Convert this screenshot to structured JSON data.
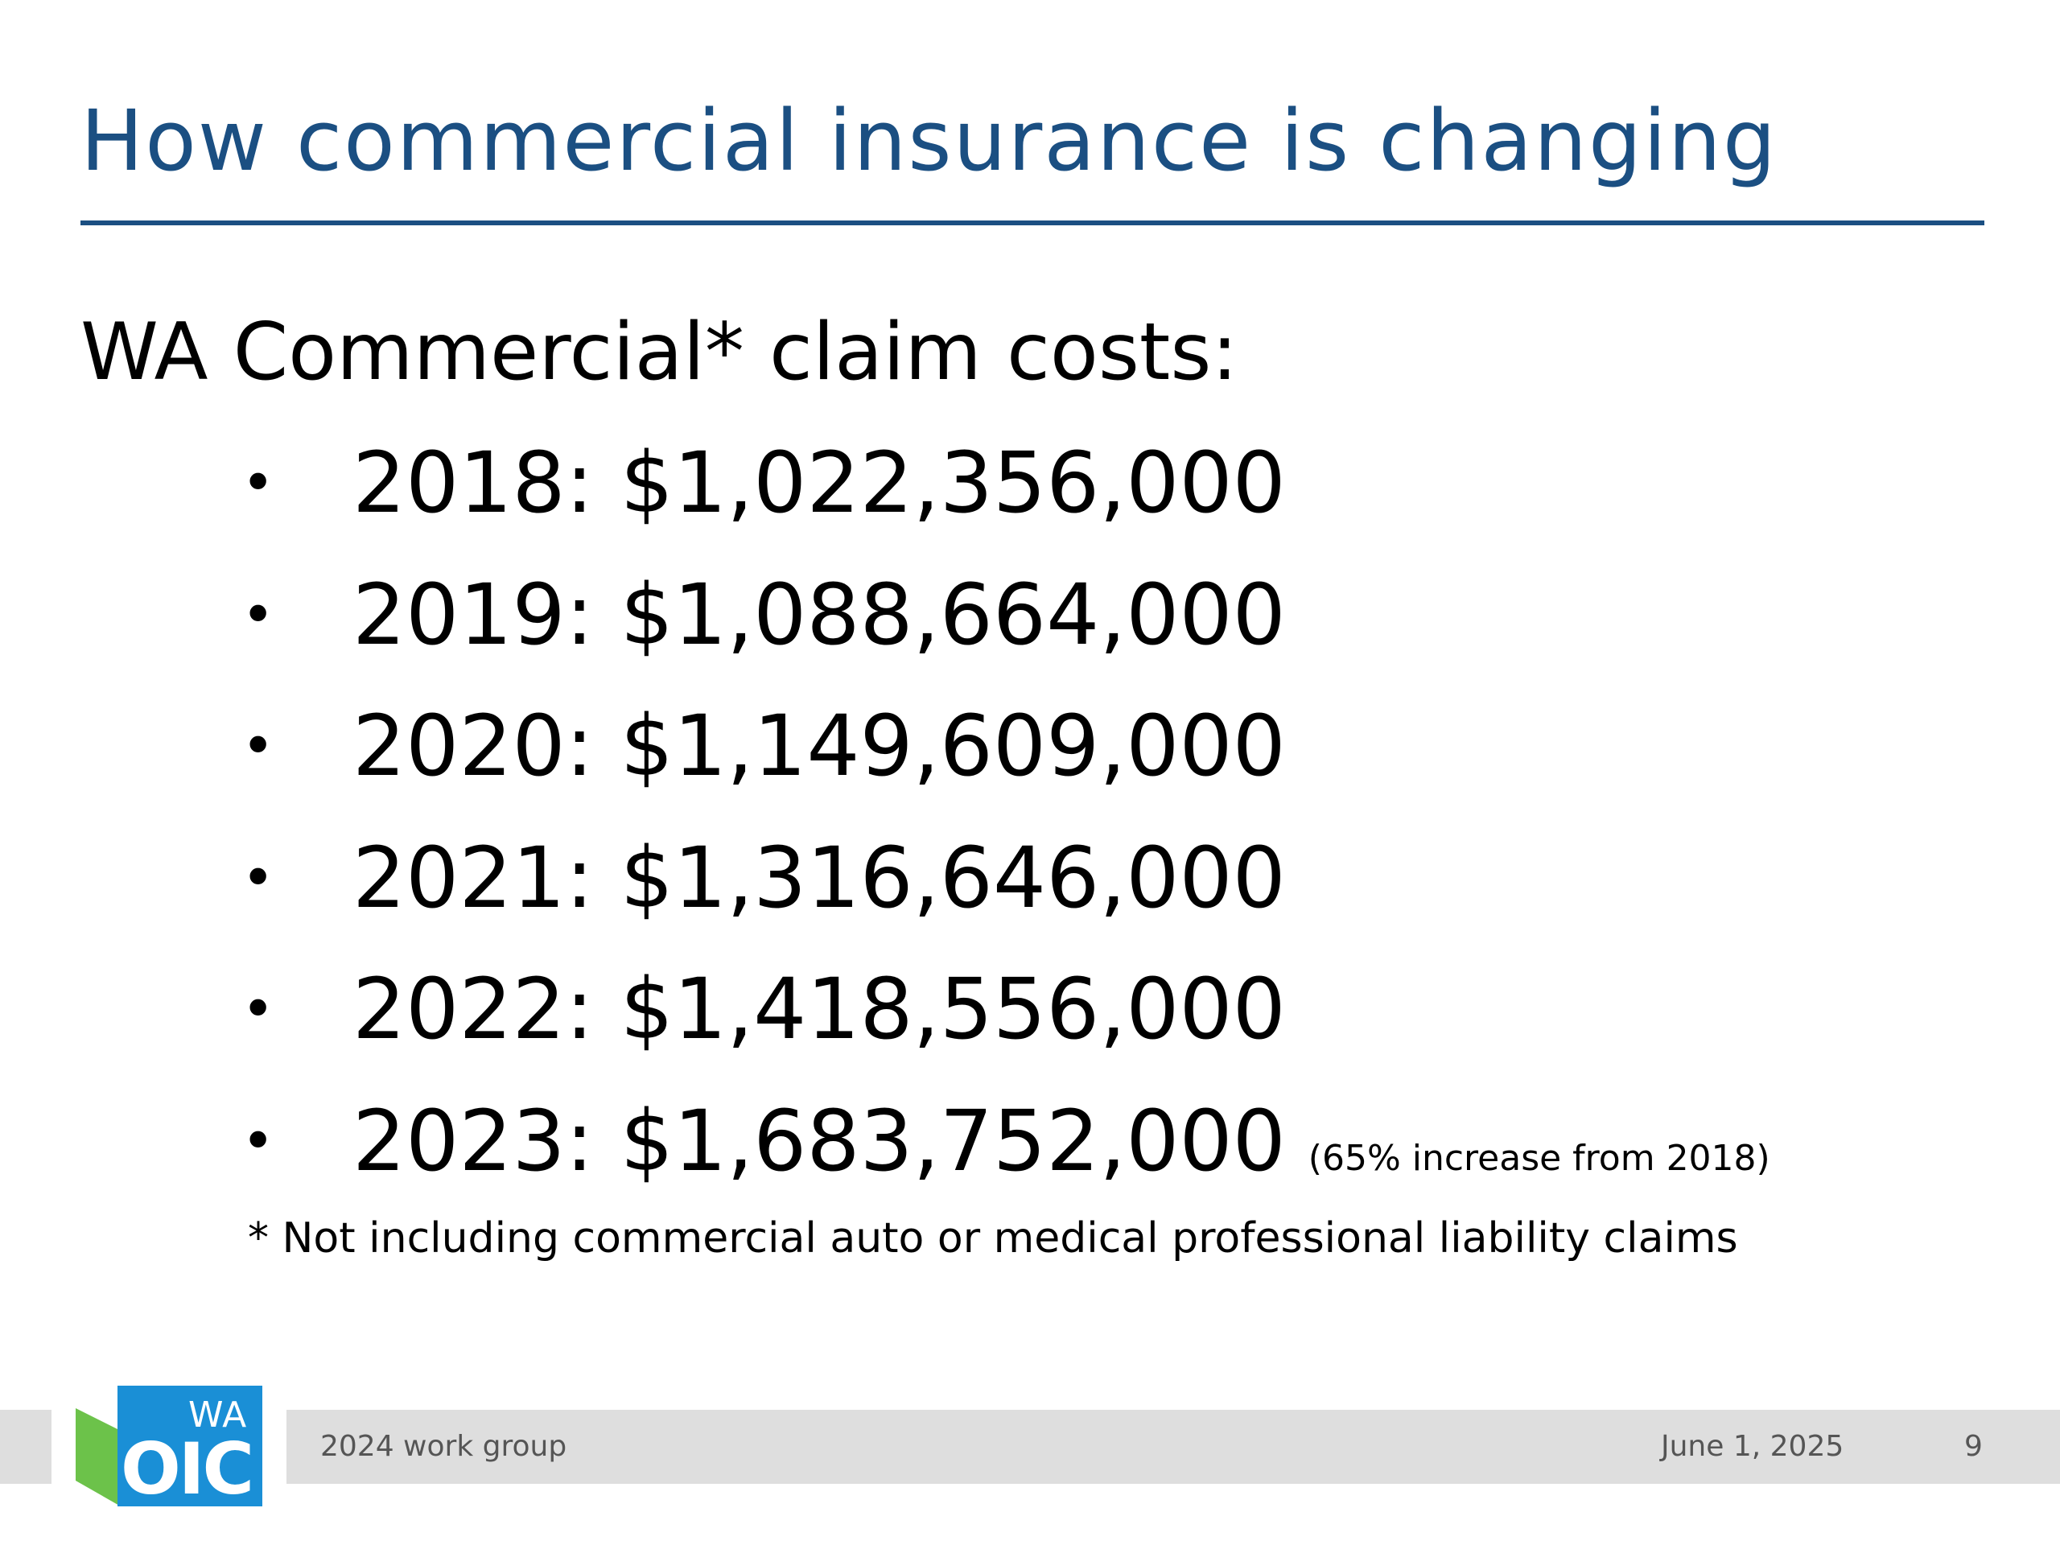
{
  "title": "How commercial insurance is changing",
  "subtitle": "WA Commercial* claim costs:",
  "bullet_glyph": "•",
  "costs": [
    {
      "text": "2018: $1,022,356,000",
      "note": ""
    },
    {
      "text": "2019: $1,088,664,000",
      "note": ""
    },
    {
      "text": "2020: $1,149,609,000",
      "note": ""
    },
    {
      "text": "2021: $1,316,646,000",
      "note": ""
    },
    {
      "text": "2022: $1,418,556,000",
      "note": ""
    },
    {
      "text": "2023: $1,683,752,000",
      "note": "(65% increase from 2018)"
    }
  ],
  "footnote": "* Not including commercial auto or medical professional liability claims",
  "footer": {
    "group": "2024 work group",
    "date": "June 1, 2025",
    "page": "9"
  },
  "logo": {
    "top_text": "WA",
    "main_text": "OIC"
  },
  "colors": {
    "title": "#1b4f82",
    "footer_bar": "#dedede",
    "logo_blue": "#1a8fd6",
    "logo_green": "#6cc24a"
  }
}
